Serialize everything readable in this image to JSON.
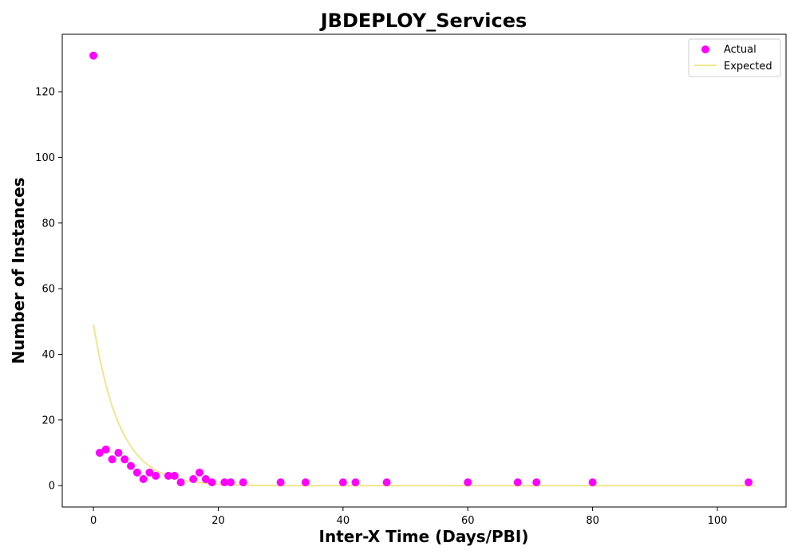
{
  "chart_data": {
    "type": "scatter",
    "title": "JBDEPLOY_Services",
    "xlabel": "Inter-X Time (Days/PBI)",
    "ylabel": "Number of Instances",
    "xlim": [
      -5,
      111
    ],
    "ylim": [
      -6.5,
      137.5
    ],
    "xticks": [
      0,
      20,
      40,
      60,
      80,
      100
    ],
    "yticks": [
      0,
      20,
      40,
      60,
      80,
      100,
      120
    ],
    "grid": false,
    "legend_position": "top-right",
    "colors": {
      "actual": "#ff00ff",
      "expected": "#f0e68c"
    },
    "series": [
      {
        "name": "Actual",
        "kind": "scatter",
        "points": [
          [
            0,
            131
          ],
          [
            1,
            10
          ],
          [
            2,
            11
          ],
          [
            3,
            8
          ],
          [
            4,
            10
          ],
          [
            5,
            8
          ],
          [
            6,
            6
          ],
          [
            7,
            4
          ],
          [
            8,
            2
          ],
          [
            9,
            4
          ],
          [
            10,
            3
          ],
          [
            12,
            3
          ],
          [
            13,
            3
          ],
          [
            14,
            1
          ],
          [
            16,
            2
          ],
          [
            17,
            4
          ],
          [
            18,
            2
          ],
          [
            19,
            1
          ],
          [
            21,
            1
          ],
          [
            22,
            1
          ],
          [
            24,
            1
          ],
          [
            30,
            1
          ],
          [
            34,
            1
          ],
          [
            40,
            1
          ],
          [
            42,
            1
          ],
          [
            47,
            1
          ],
          [
            60,
            1
          ],
          [
            68,
            1
          ],
          [
            71,
            1
          ],
          [
            80,
            1
          ],
          [
            105,
            1
          ]
        ]
      },
      {
        "name": "Expected",
        "kind": "line",
        "points": [
          [
            0,
            49
          ],
          [
            1,
            38.7
          ],
          [
            2,
            30.6
          ],
          [
            3,
            24.1
          ],
          [
            4,
            19.1
          ],
          [
            5,
            15.1
          ],
          [
            6,
            11.9
          ],
          [
            7,
            9.4
          ],
          [
            8,
            7.4
          ],
          [
            9,
            5.9
          ],
          [
            10,
            4.6
          ],
          [
            12,
            2.9
          ],
          [
            14,
            1.8
          ],
          [
            16,
            1.1
          ],
          [
            18,
            0.7
          ],
          [
            20,
            0.4
          ],
          [
            25,
            0.1
          ],
          [
            30,
            0
          ],
          [
            40,
            0
          ],
          [
            50,
            0
          ],
          [
            60,
            0
          ],
          [
            70,
            0
          ],
          [
            80,
            0
          ],
          [
            90,
            0
          ],
          [
            100,
            0
          ],
          [
            106,
            0
          ]
        ]
      }
    ]
  }
}
